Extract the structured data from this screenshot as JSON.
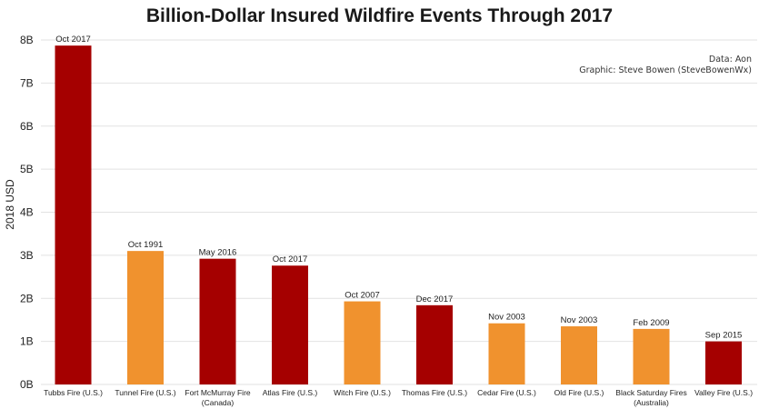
{
  "chart_data": {
    "type": "bar",
    "title": "Billion-Dollar Insured Wildfire Events Through 2017",
    "xlabel": "",
    "ylabel": "2018 USD",
    "ylim": [
      0,
      8
    ],
    "yticks": [
      "0B",
      "1B",
      "2B",
      "3B",
      "4B",
      "5B",
      "6B",
      "7B",
      "8B"
    ],
    "grid": true,
    "categories": [
      [
        "Tubbs Fire (U.S.)"
      ],
      [
        "Tunnel Fire (U.S.)"
      ],
      [
        "Fort McMurray Fire",
        "(Canada)"
      ],
      [
        "Atlas Fire (U.S.)"
      ],
      [
        "Witch Fire (U.S.)"
      ],
      [
        "Thomas Fire (U.S.)"
      ],
      [
        "Cedar Fire (U.S.)"
      ],
      [
        "Old Fire (U.S.)"
      ],
      [
        "Black Saturday Fires",
        "(Australia)"
      ],
      [
        "Valley Fire (U.S.)"
      ]
    ],
    "values": [
      7.87,
      3.1,
      2.92,
      2.76,
      1.93,
      1.84,
      1.42,
      1.35,
      1.29,
      1.0
    ],
    "dates": [
      "Oct 2017",
      "Oct 1991",
      "May 2016",
      "Oct 2017",
      "Oct 2007",
      "Dec 2017",
      "Nov 2003",
      "Nov 2003",
      "Feb 2009",
      "Sep 2015"
    ],
    "bar_colors": [
      "#a50000",
      "#f0922e",
      "#a50000",
      "#a50000",
      "#f0922e",
      "#a50000",
      "#f0922e",
      "#f0922e",
      "#f0922e",
      "#a50000"
    ]
  },
  "credits": {
    "source": "Data: Aon",
    "graphic": "Graphic: Steve Bowen  (SteveBowenWx)"
  }
}
